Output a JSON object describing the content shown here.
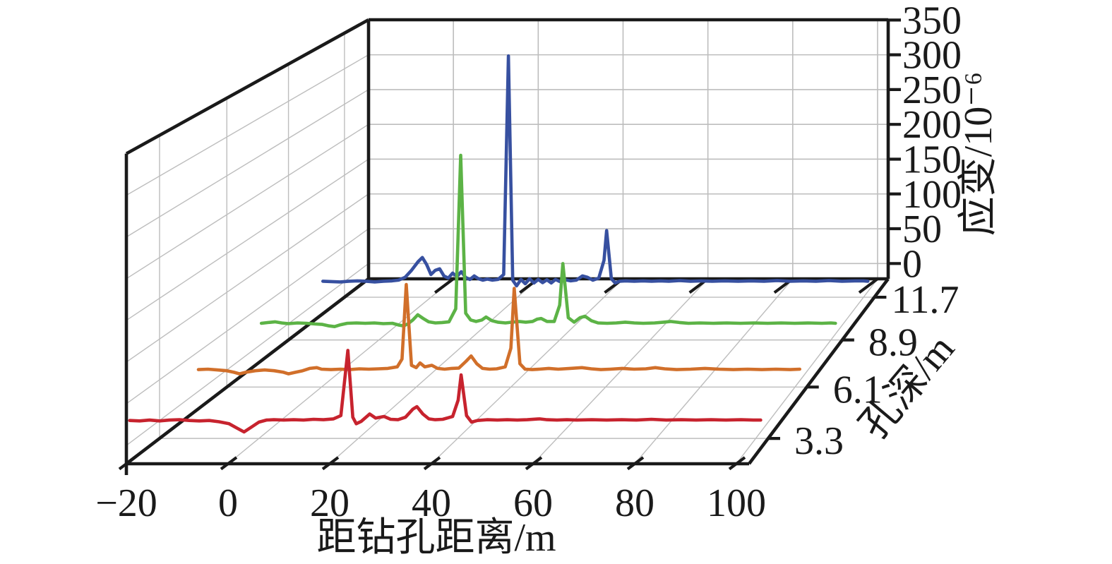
{
  "chart_data": {
    "type": "line",
    "variant": "3d-waterfall",
    "title": "",
    "xlabel": "距钻孔距离/m",
    "depth_label": "孔深/m",
    "zlabel": "应变/10⁻⁶",
    "grid": true,
    "legend_position": "none",
    "x_range": [
      -20,
      102.5
    ],
    "z_range": [
      -22,
      350
    ],
    "depth_range": [
      2,
      13
    ],
    "x_tick_values": [
      -20,
      0,
      20,
      40,
      60,
      80,
      100
    ],
    "x_tick_labels": [
      "−20",
      "0",
      "20",
      "40",
      "60",
      "80",
      "100"
    ],
    "z_tick_values": [
      0,
      50,
      100,
      150,
      200,
      250,
      300,
      350
    ],
    "z_tick_labels": [
      "0",
      "50",
      "100",
      "150",
      "200",
      "250",
      "300",
      "350"
    ],
    "depth_tick_values": [
      3.3,
      6.1,
      8.9,
      11.7
    ],
    "depth_tick_labels": [
      "3.3",
      "6.1",
      "8.9",
      "11.7"
    ],
    "series": [
      {
        "name": "孔深 11.7 m",
        "depth": 11.7,
        "color": "#3750a0",
        "points": [
          [
            -25,
            0.5
          ],
          [
            -23,
            0
          ],
          [
            -21,
            -0.5
          ],
          [
            -19,
            0.5
          ],
          [
            -17,
            1
          ],
          [
            -15,
            0.5
          ],
          [
            -13,
            -0.5
          ],
          [
            -11,
            0.5
          ],
          [
            -9,
            1
          ],
          [
            -7.5,
            2
          ],
          [
            -6,
            6
          ],
          [
            -4.5,
            16
          ],
          [
            -3,
            28
          ],
          [
            -2,
            34
          ],
          [
            -1,
            24
          ],
          [
            0,
            10
          ],
          [
            1,
            16
          ],
          [
            2,
            18
          ],
          [
            3,
            8
          ],
          [
            4,
            5
          ],
          [
            5,
            12
          ],
          [
            6,
            7
          ],
          [
            7,
            14
          ],
          [
            8,
            6
          ],
          [
            9,
            3
          ],
          [
            10,
            8
          ],
          [
            11,
            4
          ],
          [
            12,
            2
          ],
          [
            13,
            3.5
          ],
          [
            14.2,
            2
          ],
          [
            15.5,
            3
          ],
          [
            16.8,
            10
          ],
          [
            17.9,
            318
          ],
          [
            18.9,
            2
          ],
          [
            19.8,
            -6
          ],
          [
            20.8,
            3
          ],
          [
            21.8,
            -3
          ],
          [
            22.8,
            4
          ],
          [
            23.8,
            -2
          ],
          [
            24.8,
            3
          ],
          [
            25.8,
            -1.5
          ],
          [
            26.8,
            2.5
          ],
          [
            27.8,
            -2
          ],
          [
            28.8,
            3
          ],
          [
            29.8,
            0
          ],
          [
            31,
            2.5
          ],
          [
            32.3,
            1
          ],
          [
            33.6,
            2
          ],
          [
            35,
            8
          ],
          [
            36.2,
            6
          ],
          [
            37.4,
            2
          ],
          [
            38.8,
            5
          ],
          [
            40,
            30
          ],
          [
            40.6,
            72
          ],
          [
            41.7,
            4
          ],
          [
            42.6,
            -2
          ],
          [
            43.6,
            0.5
          ],
          [
            45,
            1
          ],
          [
            47,
            0.5
          ],
          [
            49,
            1
          ],
          [
            51,
            0.5
          ],
          [
            53,
            1
          ],
          [
            55,
            0.5
          ],
          [
            57.5,
            1.5
          ],
          [
            60,
            0.5
          ],
          [
            62.5,
            1
          ],
          [
            65,
            0.5
          ],
          [
            68,
            1
          ],
          [
            71,
            0.5
          ],
          [
            74,
            1
          ],
          [
            77,
            0.5
          ],
          [
            80,
            1.5
          ],
          [
            83,
            0.5
          ],
          [
            86,
            1
          ],
          [
            89,
            0.5
          ],
          [
            92,
            1.5
          ],
          [
            95,
            0.5
          ],
          [
            98,
            1
          ],
          [
            100,
            1
          ],
          [
            101,
            0.5
          ]
        ]
      },
      {
        "name": "孔深 8.9 m",
        "depth": 8.9,
        "color": "#5cb346",
        "points": [
          [
            -26,
            0.5
          ],
          [
            -24.5,
            1.5
          ],
          [
            -23,
            2.5
          ],
          [
            -21.5,
            1
          ],
          [
            -20,
            0
          ],
          [
            -18,
            1
          ],
          [
            -16,
            0.5
          ],
          [
            -14,
            -0.5
          ],
          [
            -12.5,
            -1
          ],
          [
            -11,
            -3
          ],
          [
            -9.8,
            -4
          ],
          [
            -8.5,
            -1.5
          ],
          [
            -7,
            0.5
          ],
          [
            -5,
            1
          ],
          [
            -3,
            0.5
          ],
          [
            -1,
            1
          ],
          [
            1,
            0
          ],
          [
            3,
            0.5
          ],
          [
            4.5,
            -2
          ],
          [
            5.5,
            -3
          ],
          [
            6.5,
            0
          ],
          [
            7.5,
            5
          ],
          [
            8.6,
            12
          ],
          [
            9.8,
            7
          ],
          [
            11,
            2.5
          ],
          [
            12.5,
            1
          ],
          [
            14,
            1.5
          ],
          [
            15.5,
            2.5
          ],
          [
            17,
            20
          ],
          [
            18.1,
            227
          ],
          [
            19.2,
            14
          ],
          [
            20.3,
            5
          ],
          [
            21.5,
            3
          ],
          [
            22.8,
            5
          ],
          [
            23.7,
            9
          ],
          [
            25,
            4
          ],
          [
            26.3,
            2
          ],
          [
            28,
            1
          ],
          [
            29.5,
            2
          ],
          [
            31,
            3
          ],
          [
            32.5,
            2
          ],
          [
            34,
            3
          ],
          [
            35,
            6
          ],
          [
            35.9,
            7
          ],
          [
            37.2,
            3
          ],
          [
            38.8,
            3
          ],
          [
            40,
            25
          ],
          [
            40.7,
            81
          ],
          [
            41.9,
            8
          ],
          [
            43.2,
            2
          ],
          [
            44.5,
            8
          ],
          [
            45.6,
            10
          ],
          [
            47,
            4
          ],
          [
            48.5,
            1
          ],
          [
            50.5,
            0.5
          ],
          [
            52.5,
            1
          ],
          [
            54.5,
            2
          ],
          [
            56.5,
            1
          ],
          [
            58.5,
            0.5
          ],
          [
            61,
            1
          ],
          [
            63,
            2
          ],
          [
            64.5,
            3
          ],
          [
            66.5,
            1.5
          ],
          [
            68.5,
            0.5
          ],
          [
            71,
            1
          ],
          [
            74,
            0.5
          ],
          [
            77,
            1
          ],
          [
            80,
            0.5
          ],
          [
            83,
            1
          ],
          [
            86,
            0.5
          ],
          [
            89,
            1
          ],
          [
            92,
            0.5
          ],
          [
            95,
            1
          ],
          [
            98,
            0.5
          ],
          [
            100,
            1
          ],
          [
            101,
            0.5
          ]
        ]
      },
      {
        "name": "孔深 6.1 m",
        "depth": 6.1,
        "color": "#d16f2a",
        "points": [
          [
            -26,
            0.5
          ],
          [
            -24,
            1
          ],
          [
            -22,
            0
          ],
          [
            -20,
            -1
          ],
          [
            -18.5,
            -3
          ],
          [
            -17.3,
            -5
          ],
          [
            -16,
            -3
          ],
          [
            -14,
            -1
          ],
          [
            -12,
            0
          ],
          [
            -10,
            -1
          ],
          [
            -8,
            -3
          ],
          [
            -7,
            -5
          ],
          [
            -5.5,
            -3
          ],
          [
            -4,
            -1
          ],
          [
            -2.5,
            2
          ],
          [
            -1,
            3
          ],
          [
            0,
            1
          ],
          [
            2,
            0.5
          ],
          [
            4,
            1
          ],
          [
            6,
            0.5
          ],
          [
            8,
            1.5
          ],
          [
            10,
            1
          ],
          [
            12,
            1.5
          ],
          [
            14,
            2
          ],
          [
            16,
            4
          ],
          [
            17,
            14
          ],
          [
            17.9,
            110
          ],
          [
            19,
            6
          ],
          [
            20,
            3
          ],
          [
            20.8,
            9
          ],
          [
            21.8,
            4
          ],
          [
            23.3,
            6
          ],
          [
            24.5,
            2
          ],
          [
            26,
            1
          ],
          [
            27.5,
            2
          ],
          [
            29,
            2.5
          ],
          [
            30.5,
            11
          ],
          [
            31.6,
            18
          ],
          [
            32.8,
            8
          ],
          [
            34,
            2
          ],
          [
            35.5,
            1
          ],
          [
            37,
            1.5
          ],
          [
            38.8,
            4
          ],
          [
            40,
            28
          ],
          [
            40.7,
            105
          ],
          [
            41.9,
            8
          ],
          [
            43,
            1
          ],
          [
            44.5,
            0.5
          ],
          [
            46,
            1
          ],
          [
            48,
            2
          ],
          [
            50,
            1
          ],
          [
            52.5,
            2
          ],
          [
            55,
            3
          ],
          [
            57,
            1.5
          ],
          [
            59,
            0.5
          ],
          [
            61,
            1
          ],
          [
            63.5,
            2
          ],
          [
            66,
            1
          ],
          [
            68.5,
            1.5
          ],
          [
            70.5,
            3
          ],
          [
            72.5,
            1.5
          ],
          [
            75,
            0.5
          ],
          [
            78,
            1
          ],
          [
            81,
            2
          ],
          [
            84,
            1
          ],
          [
            87,
            0.5
          ],
          [
            90,
            1
          ],
          [
            93,
            0.5
          ],
          [
            96,
            1
          ],
          [
            99,
            0.5
          ],
          [
            101,
            1
          ]
        ]
      },
      {
        "name": "孔深 3.3 m",
        "depth": 3.3,
        "color": "#c7232e",
        "points": [
          [
            -26,
            0
          ],
          [
            -24,
            -0.5
          ],
          [
            -22,
            0.5
          ],
          [
            -20,
            -0.5
          ],
          [
            -18,
            0.5
          ],
          [
            -16,
            1
          ],
          [
            -14,
            0
          ],
          [
            -12,
            -0.5
          ],
          [
            -10,
            0
          ],
          [
            -8,
            -1.5
          ],
          [
            -6,
            -4
          ],
          [
            -4.5,
            -9
          ],
          [
            -3,
            -14
          ],
          [
            -1.5,
            -8
          ],
          [
            0,
            -2
          ],
          [
            1.5,
            0.5
          ],
          [
            3,
            1
          ],
          [
            5,
            0.5
          ],
          [
            7,
            1
          ],
          [
            9,
            0.5
          ],
          [
            11,
            1.5
          ],
          [
            13,
            1
          ],
          [
            15,
            2
          ],
          [
            16.5,
            6
          ],
          [
            17.9,
            86
          ],
          [
            18.9,
            4
          ],
          [
            19.6,
            -4
          ],
          [
            20.6,
            -1
          ],
          [
            22.3,
            8
          ],
          [
            23.5,
            3
          ],
          [
            25.2,
            5
          ],
          [
            26.5,
            1.5
          ],
          [
            28,
            1
          ],
          [
            29.5,
            4
          ],
          [
            31,
            14
          ],
          [
            31.8,
            17
          ],
          [
            33,
            8
          ],
          [
            34.2,
            2
          ],
          [
            35.5,
            1
          ],
          [
            37,
            1.5
          ],
          [
            39,
            5
          ],
          [
            40.1,
            25
          ],
          [
            40.7,
            56
          ],
          [
            41.8,
            6
          ],
          [
            42.8,
            -2
          ],
          [
            44,
            0
          ],
          [
            46,
            1
          ],
          [
            48,
            0.5
          ],
          [
            50,
            1
          ],
          [
            52,
            0.5
          ],
          [
            54,
            1
          ],
          [
            56.5,
            2
          ],
          [
            58,
            1
          ],
          [
            60,
            0.5
          ],
          [
            62,
            1
          ],
          [
            64,
            0.5
          ],
          [
            67,
            1
          ],
          [
            70,
            0.5
          ],
          [
            73,
            1
          ],
          [
            76,
            0.5
          ],
          [
            79,
            1.5
          ],
          [
            82,
            0.5
          ],
          [
            85,
            1
          ],
          [
            88,
            0.5
          ],
          [
            91,
            1
          ],
          [
            94,
            0.5
          ],
          [
            97,
            1
          ],
          [
            99.5,
            0.5
          ],
          [
            101,
            0.5
          ]
        ]
      }
    ],
    "annotations": {
      "main_peak_x": 17.9,
      "secondary_peak_x": 40.6,
      "peak_heights_by_depth": {
        "3.3": 86,
        "6.1": 110,
        "8.9": 227,
        "11.7": 318
      }
    },
    "colors": {
      "frame": "#1a1a1a",
      "gridline": "#bdbdbd",
      "background": "#ffffff"
    }
  }
}
